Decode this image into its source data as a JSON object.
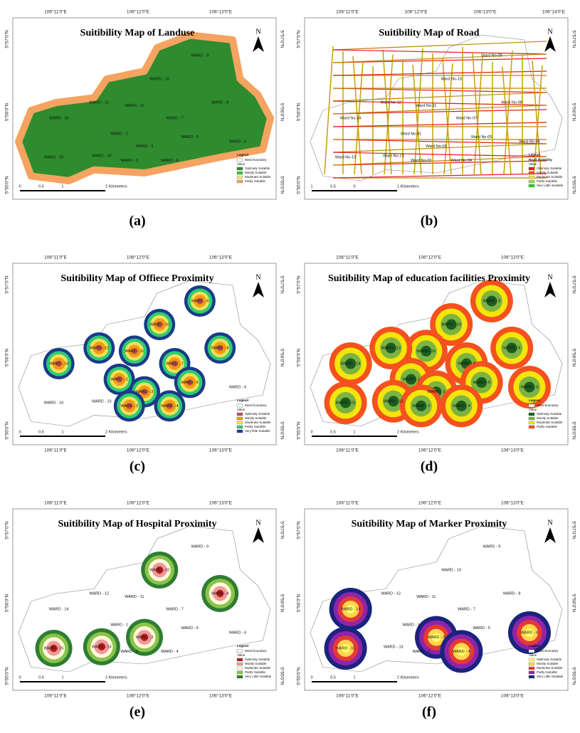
{
  "panels": [
    {
      "title": "Suitibility Map of Landuse",
      "caption": "(a)",
      "style": "landuse",
      "lon_labels": [
        "106°11'0\"E",
        "106°12'0\"E",
        "106°13'0\"E"
      ],
      "lat_labels": [
        "5°57'0\"N",
        "5°56'0\"N",
        "5°55'0\"N"
      ],
      "north": "N",
      "wards": [
        "WARD - 9",
        "WARD - 10",
        "WARD - 11",
        "WARD - 12",
        "WARD - 7",
        "WARD - 8",
        "WARD - 14",
        "WARD - 1",
        "WARD - 3",
        "WARD - 5",
        "WARD - 6",
        "WARD - 15",
        "WARD - 13",
        "WARD - 2",
        "WARD - 4"
      ],
      "legend": {
        "title": "Legend",
        "boundary": "Ward boundary",
        "value": "Value",
        "items": [
          {
            "label": "Optimaly Suitable",
            "color": "#2e8b2e"
          },
          {
            "label": "Mostly Suitable",
            "color": "#3fbf3f"
          },
          {
            "label": "Moderate Suitable",
            "color": "#f0e68c"
          },
          {
            "label": "Partly Suitable",
            "color": "#f4a460"
          }
        ]
      },
      "scale": [
        "0",
        "0.5",
        "1",
        "2 Kilometers"
      ]
    },
    {
      "title": "Suitibility Map of Road",
      "caption": "(b)",
      "style": "road",
      "lon_labels": [
        "106°11'0\"E",
        "106°12'0\"E",
        "106°13'0\"E",
        "106°14'0\"E"
      ],
      "lat_labels": [
        "5°57'0\"N",
        "5°56'0\"N",
        "5°55'0\"N"
      ],
      "north": "N",
      "wards": [
        "Ward No-09",
        "Ward No-10",
        "Ward No-11",
        "Ward No-12",
        "Ward No-07",
        "Ward No-08",
        "Ward No-14",
        "Ward No-01",
        "Ward No-03",
        "Ward No-05",
        "Ward No-06",
        "Ward No-15",
        "Ward No-13",
        "Ward No-02",
        "Ward No-04"
      ],
      "legend": {
        "title": "Legend",
        "subtitle": "Road Suitibility",
        "value": "Value",
        "items": [
          {
            "label": "Optimaly Suitable",
            "color": "#e31a1c"
          },
          {
            "label": "Mostly Suitable",
            "color": "#e6550d"
          },
          {
            "label": "Moderate Suitable",
            "color": "#f0e442"
          },
          {
            "label": "Partly Suitable",
            "color": "#a6d854"
          },
          {
            "label": "Very Little Suitable",
            "color": "#33cc33"
          }
        ]
      },
      "scale": [
        "1",
        "0.5",
        "0",
        "1 Kilometers"
      ]
    },
    {
      "title": "Suitibility Map of Offiece Proximity",
      "caption": "(c)",
      "style": "prox",
      "lon_labels_bottom": true,
      "lon_labels": [
        "106°11'0\"E",
        "106°12'0\"E",
        "106°13'0\"E"
      ],
      "lat_labels": [
        "5°57'0\"N",
        "5°56'0\"N",
        "5°55'0\"N"
      ],
      "north": "N",
      "wards": [
        "WARD - 9",
        "WARD - 10",
        "WARD - 11",
        "WARD - 12",
        "WARD - 7",
        "WARD - 8",
        "WARD - 14",
        "WARD - 1",
        "WARD - 3",
        "WARD - 5",
        "WARD - 6",
        "WARD - 15",
        "WARD - 13",
        "WARD - 2",
        "WARD - 4"
      ],
      "legend": {
        "title": "Legend",
        "boundary": "Ward boundary",
        "value": "Value",
        "items": [
          {
            "label": "Optimaly Suitable",
            "color": "#c0504d"
          },
          {
            "label": "Mostly Suitable",
            "color": "#f39c12"
          },
          {
            "label": "Moderate Suitable",
            "color": "#f1e05a"
          },
          {
            "label": "Partly Suitable",
            "color": "#2ecc71"
          },
          {
            "label": "Very little Suitable",
            "color": "#1a3a8a"
          }
        ]
      },
      "scale": [
        "0",
        "0.5",
        "1",
        "2 Kilometers"
      ]
    },
    {
      "title": "Suitibility Map of education facilities Proximity",
      "caption": "(d)",
      "style": "prox",
      "lon_labels_bottom": true,
      "lon_labels": [
        "106°11'0\"E",
        "106°12'0\"E",
        "106°13'0\"E"
      ],
      "lat_labels": [
        "5°57'0\"N",
        "5°56'0\"N",
        "5°55'0\"N"
      ],
      "north": "N",
      "wards": [
        "WARD - 9",
        "WARD - 10",
        "WARD - 11",
        "WARD - 12",
        "WARD - 7",
        "WARD - 8",
        "WARD - 14",
        "WARD - 1",
        "WARD - 3",
        "WARD - 5",
        "WARD - 6",
        "WARD - 15",
        "WARD - 13",
        "WARD - 2",
        "WARD - 4"
      ],
      "legend": {
        "title": "Legend",
        "boundary": "Ward boundary",
        "value": "Value",
        "items": [
          {
            "label": "Optimaly Suitable",
            "color": "#1b5e20"
          },
          {
            "label": "Mostly Suitable",
            "color": "#7cb342"
          },
          {
            "label": "Moderate Suitable",
            "color": "#f5e50a"
          },
          {
            "label": "Partly Suitable",
            "color": "#f4511e"
          }
        ]
      },
      "scale": [
        "0",
        "0.5",
        "1",
        "2 Kilometers"
      ]
    },
    {
      "title": "Suitibility Map of Hospital Proximity",
      "caption": "(e)",
      "style": "prox",
      "lon_labels_bottom": true,
      "lon_labels": [
        "106°11'0\"E",
        "106°12'0\"E",
        "106°13'0\"E"
      ],
      "lat_labels": [
        "5°57'0\"N",
        "5°56'0\"N",
        "5°55'0\"N"
      ],
      "north": "N",
      "wards": [
        "WARD - 9",
        "WARD - 10",
        "WARD - 11",
        "WARD - 12",
        "WARD - 7",
        "WARD - 8",
        "WARD - 14",
        "WARD - 1",
        "WARD - 3",
        "WARD - 5",
        "WARD - 6",
        "WARD - 15",
        "WARD - 13",
        "WARD - 2",
        "WARD - 4"
      ],
      "legend": {
        "title": "Legend",
        "boundary": "Ward boundary",
        "value": "Value",
        "items": [
          {
            "label": "Optimaly Suitable",
            "color": "#b71c1c"
          },
          {
            "label": "Mostly Suitable",
            "color": "#ef9a9a"
          },
          {
            "label": "Moderate Suitable",
            "color": "#fff8dc"
          },
          {
            "label": "Partly Suitable",
            "color": "#8bc34a"
          },
          {
            "label": "Very Little Suitable",
            "color": "#2e7d32"
          }
        ]
      },
      "scale": [
        "0",
        "0.5",
        "1",
        "2 Kilometers"
      ]
    },
    {
      "title": "Suitibility Map of Marker Proximity",
      "caption": "(f)",
      "style": "prox",
      "lon_labels_bottom": true,
      "lon_labels": [
        "106°11'0\"E",
        "106°12'0\"E",
        "106°13'0\"E"
      ],
      "lat_labels": [
        "5°57'0\"N",
        "5°56'0\"N",
        "5°55'0\"N"
      ],
      "north": "N",
      "wards": [
        "WARD - 9",
        "WARD - 10",
        "WARD - 11",
        "WARD - 12",
        "WARD - 7",
        "WARD - 8",
        "WARD - 14",
        "WARD - 1",
        "WARD - 3",
        "WARD - 5",
        "WARD - 6",
        "WARD - 15",
        "WARD - 13",
        "WARD - 2",
        "WARD - 4"
      ],
      "legend": {
        "title": "Legend",
        "boundary": "Ward boundary",
        "value": "Value",
        "items": [
          {
            "label": "Optimaly Suitable",
            "color": "#ffff66"
          },
          {
            "label": "Mostly Suitable",
            "color": "#ffd54f"
          },
          {
            "label": "Moderate Suitable",
            "color": "#e53935"
          },
          {
            "label": "Partly Suitable",
            "color": "#8e24aa"
          },
          {
            "label": "Very Little Suitable",
            "color": "#1a237e"
          }
        ]
      },
      "scale": [
        "0",
        "0.5",
        "1",
        "2 Kilometers"
      ]
    }
  ]
}
